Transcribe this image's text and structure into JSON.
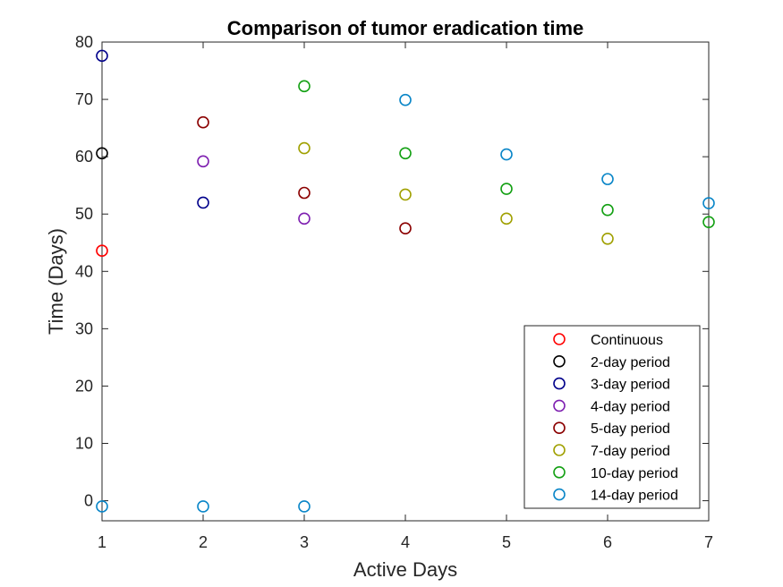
{
  "chart_data": {
    "type": "scatter",
    "title": "Comparison of tumor eradication time",
    "xlabel": "Active Days",
    "ylabel": "Time (Days)",
    "xlim": [
      1,
      7
    ],
    "ylim": [
      -3.5,
      80
    ],
    "xticks": [
      "1",
      "2",
      "3",
      "4",
      "5",
      "6",
      "7"
    ],
    "yticks": [
      "0",
      "10",
      "20",
      "30",
      "40",
      "50",
      "60",
      "70",
      "80"
    ],
    "grid": false,
    "legend_position": "bottom-right",
    "marker": "open-circle",
    "series": [
      {
        "name": "Continuous",
        "color": "#ff0000",
        "points": [
          [
            1,
            43.6
          ]
        ]
      },
      {
        "name": "2-day period",
        "color": "#000000",
        "points": [
          [
            1,
            60.6
          ]
        ]
      },
      {
        "name": "3-day period",
        "color": "#00008b",
        "points": [
          [
            1,
            77.6
          ],
          [
            2,
            52.0
          ]
        ]
      },
      {
        "name": "4-day period",
        "color": "#7e1fb0",
        "points": [
          [
            2,
            59.2
          ],
          [
            3,
            49.2
          ]
        ]
      },
      {
        "name": "5-day period",
        "color": "#8b0000",
        "points": [
          [
            2,
            66.0
          ],
          [
            3,
            53.7
          ],
          [
            4,
            47.5
          ]
        ]
      },
      {
        "name": "7-day period",
        "color": "#a0a000",
        "points": [
          [
            3,
            61.5
          ],
          [
            4,
            53.4
          ],
          [
            5,
            49.2
          ],
          [
            6,
            45.7
          ]
        ]
      },
      {
        "name": "10-day period",
        "color": "#13a013",
        "points": [
          [
            3,
            72.3
          ],
          [
            4,
            60.6
          ],
          [
            5,
            54.4
          ],
          [
            6,
            50.7
          ],
          [
            7,
            48.6
          ]
        ]
      },
      {
        "name": "14-day period",
        "color": "#0a86c8",
        "points": [
          [
            1,
            -1
          ],
          [
            2,
            -1
          ],
          [
            3,
            -1
          ],
          [
            4,
            69.9
          ],
          [
            5,
            60.4
          ],
          [
            6,
            56.1
          ],
          [
            7,
            51.9
          ]
        ]
      }
    ]
  }
}
